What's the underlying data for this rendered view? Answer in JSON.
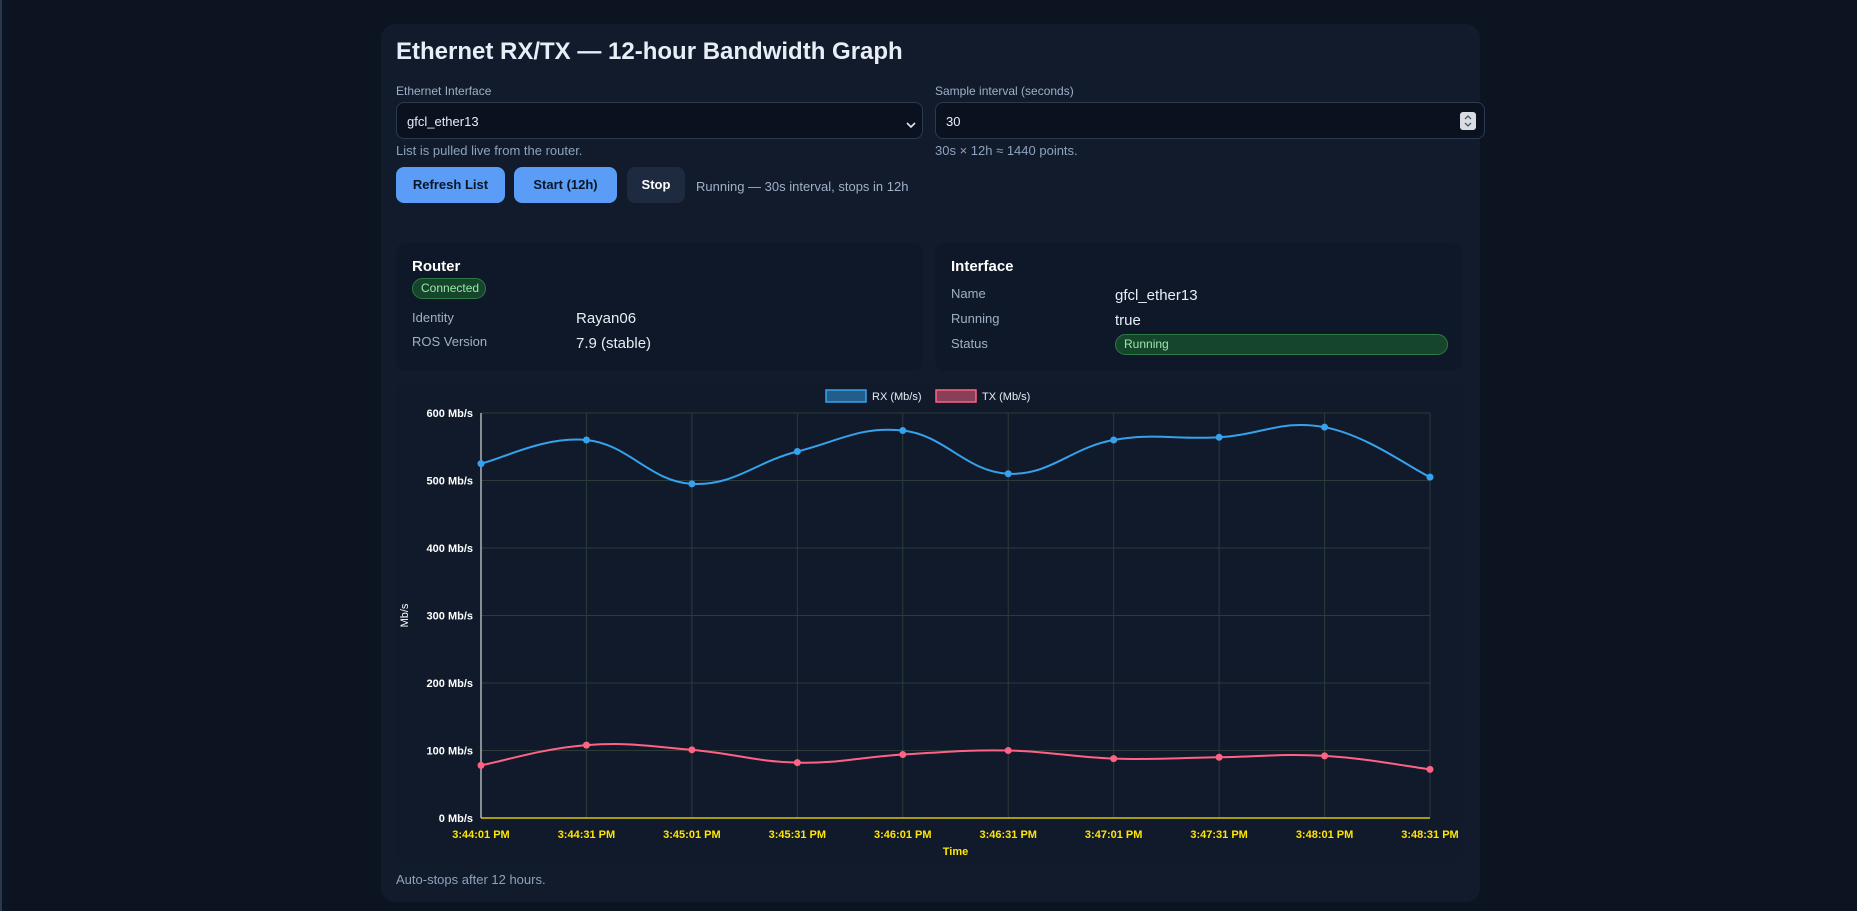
{
  "title": "Ethernet RX/TX — 12-hour Bandwidth Graph",
  "interface_field": {
    "label": "Ethernet Interface",
    "value": "gfcl_ether13",
    "hint": "List is pulled live from the router."
  },
  "interval_field": {
    "label": "Sample interval (seconds)",
    "value": "30",
    "hint": "30s × 12h ≈ 1440 points."
  },
  "buttons": {
    "refresh": "Refresh List",
    "start": "Start (12h)",
    "stop": "Stop"
  },
  "status_line": "Running — 30s interval, stops in 12h",
  "router_panel": {
    "title": "Router",
    "badge": "Connected",
    "rows": [
      {
        "label": "Identity",
        "value": "Rayan06"
      },
      {
        "label": "ROS Version",
        "value": "7.9 (stable)"
      }
    ]
  },
  "interface_panel": {
    "title": "Interface",
    "rows": [
      {
        "label": "Name",
        "value": "gfcl_ether13"
      },
      {
        "label": "Running",
        "value": "true"
      }
    ],
    "status_label": "Status",
    "status_badge": "Running"
  },
  "colors": {
    "rx": "#36a2eb",
    "tx": "#ff6384",
    "axis_text": "#ffffff",
    "time_text": "#ffe600",
    "grid": "#2c3a3a"
  },
  "chart_data": {
    "type": "line",
    "title": "",
    "xlabel": "Time",
    "ylabel": "Mb/s",
    "ylim": [
      0,
      600
    ],
    "y_ticks": [
      "0 Mb/s",
      "100 Mb/s",
      "200 Mb/s",
      "300 Mb/s",
      "400 Mb/s",
      "500 Mb/s",
      "600 Mb/s"
    ],
    "x": [
      "3:44:01 PM",
      "3:44:31 PM",
      "3:45:01 PM",
      "3:45:31 PM",
      "3:46:01 PM",
      "3:46:31 PM",
      "3:47:01 PM",
      "3:47:31 PM",
      "3:48:01 PM",
      "3:48:31 PM"
    ],
    "legend": [
      "RX (Mb/s)",
      "TX (Mb/s)"
    ],
    "series": [
      {
        "name": "RX (Mb/s)",
        "values": [
          525,
          560,
          495,
          543,
          574,
          510,
          560,
          564,
          579,
          505
        ]
      },
      {
        "name": "TX (Mb/s)",
        "values": [
          78,
          108,
          101,
          82,
          94,
          100,
          88,
          90,
          92,
          72
        ]
      }
    ]
  },
  "footer_note": "Auto-stops after 12 hours."
}
